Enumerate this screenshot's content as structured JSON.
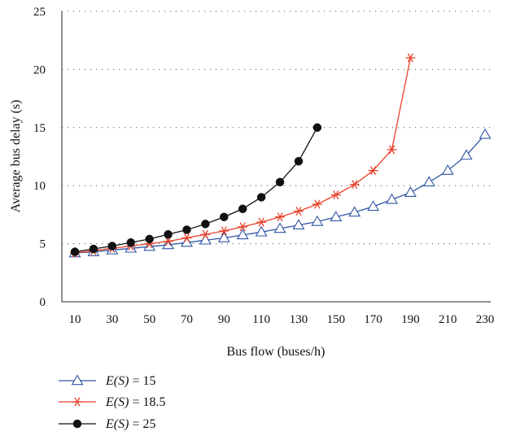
{
  "chart_data": {
    "type": "line",
    "xlabel": "Bus flow (buses/h)",
    "ylabel": "Average bus delay (s)",
    "x_ticks": [
      10,
      30,
      50,
      70,
      90,
      110,
      130,
      150,
      170,
      190,
      210,
      230
    ],
    "y_ticks": [
      0,
      5,
      10,
      15,
      20,
      25
    ],
    "xlim": [
      3,
      233
    ],
    "ylim": [
      0,
      25
    ],
    "grid": "horizontal-dotted",
    "legend_position": "bottom-left",
    "series": [
      {
        "name": "E(S) = 15",
        "legend_prefix": "E(S)",
        "legend_suffix": " = 15",
        "color": "#2f55a4",
        "marker": "triangle-open",
        "x": [
          10,
          20,
          30,
          40,
          50,
          60,
          70,
          80,
          90,
          100,
          110,
          120,
          130,
          140,
          150,
          160,
          170,
          180,
          190,
          200,
          210,
          220,
          230
        ],
        "y": [
          4.2,
          4.3,
          4.45,
          4.6,
          4.75,
          4.9,
          5.1,
          5.3,
          5.5,
          5.75,
          6.0,
          6.3,
          6.6,
          6.9,
          7.3,
          7.7,
          8.2,
          8.8,
          9.4,
          10.3,
          11.3,
          12.6,
          14.4
        ]
      },
      {
        "name": "E(S) = 18.5",
        "legend_prefix": "E(S)",
        "legend_suffix": " = 18.5",
        "color": "#e8402a",
        "marker": "asterisk",
        "x": [
          10,
          20,
          30,
          40,
          50,
          60,
          70,
          80,
          90,
          100,
          110,
          120,
          130,
          140,
          150,
          160,
          170,
          180,
          190
        ],
        "y": [
          4.2,
          4.4,
          4.6,
          4.8,
          5.0,
          5.2,
          5.5,
          5.8,
          6.1,
          6.45,
          6.85,
          7.3,
          7.8,
          8.4,
          9.2,
          10.1,
          11.3,
          13.1,
          21.0
        ]
      },
      {
        "name": "E(S) = 25",
        "legend_prefix": "E(S)",
        "legend_suffix": " = 25",
        "color": "#111111",
        "marker": "circle-filled",
        "x": [
          10,
          20,
          30,
          40,
          50,
          60,
          70,
          80,
          90,
          100,
          110,
          120,
          130,
          140
        ],
        "y": [
          4.3,
          4.55,
          4.8,
          5.1,
          5.4,
          5.8,
          6.2,
          6.7,
          7.3,
          8.0,
          9.0,
          10.3,
          12.1,
          15.0
        ]
      }
    ]
  }
}
